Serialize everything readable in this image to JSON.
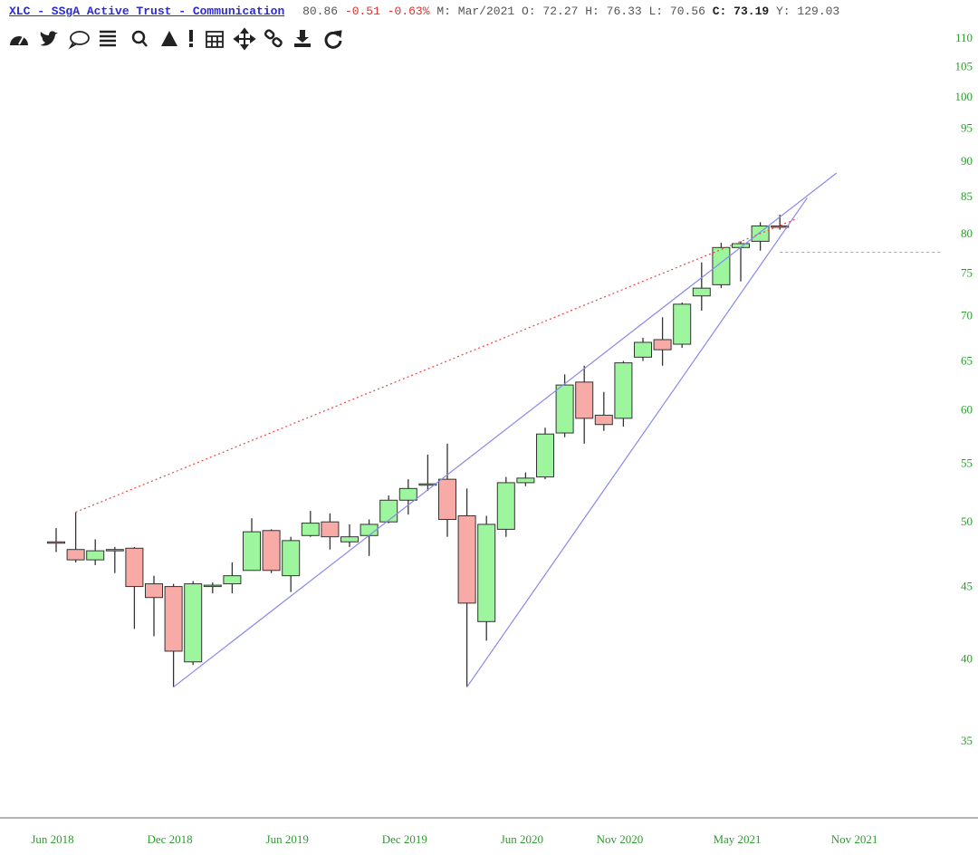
{
  "chart_data": {
    "type": "candlestick",
    "header": {
      "title": "XLC - SSgA Active Trust - Communication",
      "last": 80.86,
      "change": -0.51,
      "change_pct": "-0.63%",
      "fields": [
        {
          "label": "M:",
          "value": "Mar/2021"
        },
        {
          "label": "O:",
          "value": 72.27
        },
        {
          "label": "H:",
          "value": 76.33
        },
        {
          "label": "L:",
          "value": 70.56
        },
        {
          "label": "C:",
          "value": 73.19,
          "bold": true
        },
        {
          "label": "Y:",
          "value": 129.03
        }
      ]
    },
    "categories": [
      "Jun 2018",
      null,
      null,
      null,
      null,
      null,
      "Dec 2018",
      null,
      null,
      null,
      null,
      null,
      "Jun 2019",
      null,
      null,
      null,
      null,
      null,
      "Dec 2019",
      null,
      null,
      null,
      null,
      null,
      "Jun 2020",
      null,
      null,
      null,
      null,
      "Nov 2020",
      null,
      null,
      null,
      null,
      null,
      "May 2021",
      null,
      null,
      null,
      null,
      null,
      "Nov 2021"
    ],
    "open": [
      48.4,
      47.8,
      47.0,
      47.8,
      47.9,
      45.2,
      45.0,
      39.8,
      45.0,
      45.2,
      46.2,
      49.3,
      45.8,
      48.9,
      50.0,
      48.4,
      48.9,
      50.0,
      51.8,
      53.2,
      53.6,
      50.5,
      42.5,
      49.4,
      53.3,
      53.8,
      57.8,
      62.8,
      59.5,
      59.2,
      65.4,
      67.3,
      66.8,
      72.27,
      73.6,
      78.2,
      79.0,
      81.0,
      null,
      null,
      null,
      null
    ],
    "high": [
      49.5,
      50.8,
      48.6,
      48.0,
      48.0,
      45.8,
      45.2,
      45.4,
      45.3,
      46.8,
      50.3,
      49.4,
      48.8,
      50.9,
      50.7,
      49.8,
      50.2,
      52.2,
      53.6,
      55.8,
      56.8,
      52.8,
      50.5,
      53.8,
      54.2,
      58.3,
      63.6,
      64.5,
      61.8,
      65.0,
      67.5,
      69.8,
      71.5,
      76.33,
      78.8,
      79.0,
      81.5,
      82.5,
      null,
      null,
      null,
      null
    ],
    "low": [
      47.6,
      46.8,
      46.6,
      46.0,
      42.0,
      41.5,
      38.2,
      39.6,
      44.5,
      44.5,
      46.2,
      46.0,
      44.6,
      48.8,
      47.8,
      48.0,
      47.3,
      49.9,
      50.6,
      52.6,
      48.8,
      38.2,
      41.2,
      48.8,
      53.0,
      53.6,
      57.4,
      56.8,
      58.0,
      58.4,
      65.0,
      64.5,
      66.4,
      70.56,
      73.2,
      74.0,
      77.8,
      80.5,
      null,
      null,
      null,
      null
    ],
    "close": [
      48.3,
      47.0,
      47.7,
      47.8,
      45.0,
      44.2,
      40.5,
      45.2,
      45.1,
      45.8,
      49.2,
      46.2,
      48.5,
      49.9,
      48.8,
      48.8,
      49.8,
      51.8,
      52.8,
      53.2,
      50.2,
      43.8,
      49.8,
      53.3,
      53.7,
      57.7,
      62.5,
      59.2,
      58.6,
      64.8,
      67.0,
      66.2,
      71.3,
      73.19,
      78.2,
      78.7,
      81.0,
      80.86,
      null,
      null,
      null,
      null
    ],
    "up_color": "#9df59d",
    "down_color": "#f8aaa7",
    "ylim": [
      31,
      112
    ],
    "log": true,
    "yticks": [
      35,
      40,
      45,
      50,
      55,
      60,
      65,
      70,
      75,
      80,
      85,
      90,
      95,
      100,
      105,
      110
    ],
    "trendlines": [
      {
        "color": "#8888ee",
        "dashed": false,
        "from": [
          6,
          38.2
        ],
        "to": [
          39.9,
          88.3
        ]
      },
      {
        "color": "#8888ee",
        "dashed": false,
        "from": [
          21,
          38.2
        ],
        "to": [
          38.4,
          84.8
        ]
      },
      {
        "color": "#ee4444",
        "dashed": true,
        "from": [
          1,
          50.8
        ],
        "to": [
          37.9,
          82.0
        ]
      }
    ],
    "reference_line": {
      "value": 77.6,
      "from": 37,
      "color": "#aaaaaa"
    }
  }
}
